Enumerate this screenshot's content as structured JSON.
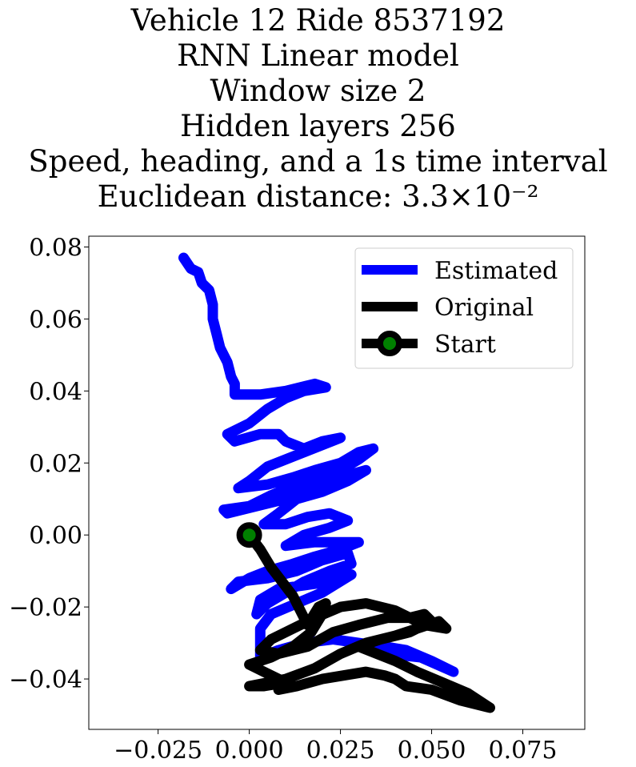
{
  "chart_data": {
    "type": "line",
    "title_lines": [
      "Vehicle 12 Ride 8537192",
      "RNN Linear model",
      "Window size 2",
      "Hidden layers 256",
      "Speed, heading, and a 1s time interval",
      "Euclidean distance: 3.3×10⁻²"
    ],
    "xlabel": "",
    "ylabel": "",
    "xlim": [
      -0.044,
      0.092
    ],
    "ylim": [
      -0.054,
      0.083
    ],
    "xticks": [
      -0.025,
      0.0,
      0.025,
      0.05,
      0.075
    ],
    "xtick_labels": [
      "−0.025",
      "0.000",
      "0.025",
      "0.050",
      "0.075"
    ],
    "yticks": [
      0.08,
      0.06,
      0.04,
      0.02,
      0.0,
      -0.02,
      -0.04
    ],
    "ytick_labels": [
      "0.08",
      "0.06",
      "0.04",
      "0.02",
      "0.00",
      "−0.02",
      "−0.04"
    ],
    "grid": false,
    "legend_position": "top-right",
    "series": [
      {
        "name": "Estimated",
        "color": "#0000ff",
        "points": [
          [
            -0.018,
            0.077
          ],
          [
            -0.016,
            0.074
          ],
          [
            -0.014,
            0.073
          ],
          [
            -0.013,
            0.07
          ],
          [
            -0.011,
            0.068
          ],
          [
            -0.01,
            0.064
          ],
          [
            -0.01,
            0.06
          ],
          [
            -0.009,
            0.056
          ],
          [
            -0.008,
            0.052
          ],
          [
            -0.006,
            0.048
          ],
          [
            -0.005,
            0.044
          ],
          [
            -0.004,
            0.042
          ],
          [
            -0.004,
            0.039
          ],
          [
            0.003,
            0.039
          ],
          [
            0.01,
            0.04
          ],
          [
            0.018,
            0.042
          ],
          [
            0.021,
            0.041
          ],
          [
            0.015,
            0.04
          ],
          [
            0.01,
            0.038
          ],
          [
            0.005,
            0.035
          ],
          [
            0.0,
            0.031
          ],
          [
            -0.006,
            0.028
          ],
          [
            -0.004,
            0.026
          ],
          [
            0.003,
            0.028
          ],
          [
            0.008,
            0.028
          ],
          [
            0.01,
            0.026
          ],
          [
            0.015,
            0.024
          ],
          [
            0.02,
            0.026
          ],
          [
            0.025,
            0.027
          ],
          [
            0.02,
            0.025
          ],
          [
            0.015,
            0.023
          ],
          [
            0.01,
            0.021
          ],
          [
            0.005,
            0.019
          ],
          [
            0.0,
            0.015
          ],
          [
            -0.003,
            0.013
          ],
          [
            0.005,
            0.014
          ],
          [
            0.012,
            0.016
          ],
          [
            0.018,
            0.018
          ],
          [
            0.025,
            0.02
          ],
          [
            0.03,
            0.023
          ],
          [
            0.034,
            0.024
          ],
          [
            0.03,
            0.021
          ],
          [
            0.025,
            0.018
          ],
          [
            0.02,
            0.016
          ],
          [
            0.013,
            0.014
          ],
          [
            0.006,
            0.011
          ],
          [
            0.0,
            0.008
          ],
          [
            -0.007,
            0.007
          ],
          [
            -0.006,
            0.006
          ],
          [
            0.002,
            0.008
          ],
          [
            0.01,
            0.01
          ],
          [
            0.018,
            0.013
          ],
          [
            0.025,
            0.016
          ],
          [
            0.032,
            0.018
          ],
          [
            0.027,
            0.015
          ],
          [
            0.02,
            0.012
          ],
          [
            0.013,
            0.01
          ],
          [
            0.008,
            0.006
          ],
          [
            0.004,
            0.003
          ],
          [
            0.01,
            0.003
          ],
          [
            0.016,
            0.005
          ],
          [
            0.022,
            0.006
          ],
          [
            0.027,
            0.004
          ],
          [
            0.022,
            0.002
          ],
          [
            0.015,
            0.0
          ],
          [
            0.01,
            -0.003
          ],
          [
            0.018,
            -0.002
          ],
          [
            0.025,
            -0.002
          ],
          [
            0.03,
            -0.002
          ],
          [
            0.025,
            -0.004
          ],
          [
            0.018,
            -0.006
          ],
          [
            0.012,
            -0.008
          ],
          [
            0.005,
            -0.01
          ],
          [
            0.0,
            -0.012
          ],
          [
            -0.005,
            -0.015
          ],
          [
            -0.003,
            -0.013
          ],
          [
            0.005,
            -0.012
          ],
          [
            0.013,
            -0.01
          ],
          [
            0.02,
            -0.007
          ],
          [
            0.027,
            -0.005
          ],
          [
            0.028,
            -0.008
          ],
          [
            0.022,
            -0.01
          ],
          [
            0.015,
            -0.013
          ],
          [
            0.01,
            -0.016
          ],
          [
            0.005,
            -0.019
          ],
          [
            0.002,
            -0.022
          ],
          [
            0.003,
            -0.018
          ],
          [
            0.008,
            -0.015
          ],
          [
            0.015,
            -0.014
          ],
          [
            0.022,
            -0.013
          ],
          [
            0.028,
            -0.011
          ],
          [
            0.02,
            -0.016
          ],
          [
            0.013,
            -0.019
          ],
          [
            0.006,
            -0.022
          ],
          [
            0.003,
            -0.026
          ],
          [
            0.003,
            -0.03
          ],
          [
            0.003,
            -0.034
          ],
          [
            0.008,
            -0.032
          ],
          [
            0.015,
            -0.03
          ],
          [
            0.023,
            -0.029
          ],
          [
            0.03,
            -0.03
          ],
          [
            0.037,
            -0.031
          ],
          [
            0.043,
            -0.032
          ],
          [
            0.05,
            -0.035
          ],
          [
            0.056,
            -0.038
          ],
          [
            0.047,
            -0.034
          ],
          [
            0.038,
            -0.033
          ]
        ]
      },
      {
        "name": "Original",
        "color": "#000000",
        "points": [
          [
            0.0,
            0.0
          ],
          [
            0.003,
            -0.004
          ],
          [
            0.006,
            -0.009
          ],
          [
            0.009,
            -0.013
          ],
          [
            0.012,
            -0.017
          ],
          [
            0.014,
            -0.021
          ],
          [
            0.016,
            -0.025
          ],
          [
            0.019,
            -0.02
          ],
          [
            0.021,
            -0.019
          ],
          [
            0.02,
            -0.022
          ],
          [
            0.017,
            -0.027
          ],
          [
            0.012,
            -0.031
          ],
          [
            0.006,
            -0.034
          ],
          [
            0.0,
            -0.036
          ],
          [
            0.004,
            -0.038
          ],
          [
            0.01,
            -0.041
          ],
          [
            0.004,
            -0.042
          ],
          [
            0.0,
            -0.042
          ],
          [
            0.01,
            -0.04
          ],
          [
            0.018,
            -0.037
          ],
          [
            0.025,
            -0.033
          ],
          [
            0.032,
            -0.03
          ],
          [
            0.04,
            -0.028
          ],
          [
            0.046,
            -0.026
          ],
          [
            0.052,
            -0.024
          ],
          [
            0.054,
            -0.026
          ],
          [
            0.048,
            -0.025
          ],
          [
            0.04,
            -0.021
          ],
          [
            0.032,
            -0.019
          ],
          [
            0.025,
            -0.02
          ],
          [
            0.018,
            -0.023
          ],
          [
            0.012,
            -0.026
          ],
          [
            0.006,
            -0.029
          ],
          [
            0.003,
            -0.032
          ],
          [
            0.008,
            -0.033
          ],
          [
            0.016,
            -0.031
          ],
          [
            0.023,
            -0.027
          ],
          [
            0.03,
            -0.025
          ],
          [
            0.038,
            -0.023
          ],
          [
            0.044,
            -0.023
          ],
          [
            0.048,
            -0.022
          ],
          [
            0.05,
            -0.024
          ],
          [
            0.044,
            -0.027
          ],
          [
            0.036,
            -0.029
          ],
          [
            0.03,
            -0.031
          ],
          [
            0.035,
            -0.033
          ],
          [
            0.04,
            -0.035
          ],
          [
            0.046,
            -0.038
          ],
          [
            0.053,
            -0.041
          ],
          [
            0.06,
            -0.044
          ],
          [
            0.066,
            -0.048
          ],
          [
            0.058,
            -0.046
          ],
          [
            0.05,
            -0.043
          ],
          [
            0.043,
            -0.042
          ],
          [
            0.04,
            -0.04
          ],
          [
            0.037,
            -0.039
          ],
          [
            0.032,
            -0.038
          ],
          [
            0.026,
            -0.039
          ],
          [
            0.02,
            -0.04
          ],
          [
            0.013,
            -0.042
          ],
          [
            0.008,
            -0.043
          ]
        ]
      },
      {
        "name": "Start",
        "color": "#000000",
        "marker_color": "#008000",
        "points": [
          [
            0.0,
            0.0
          ]
        ]
      }
    ]
  }
}
